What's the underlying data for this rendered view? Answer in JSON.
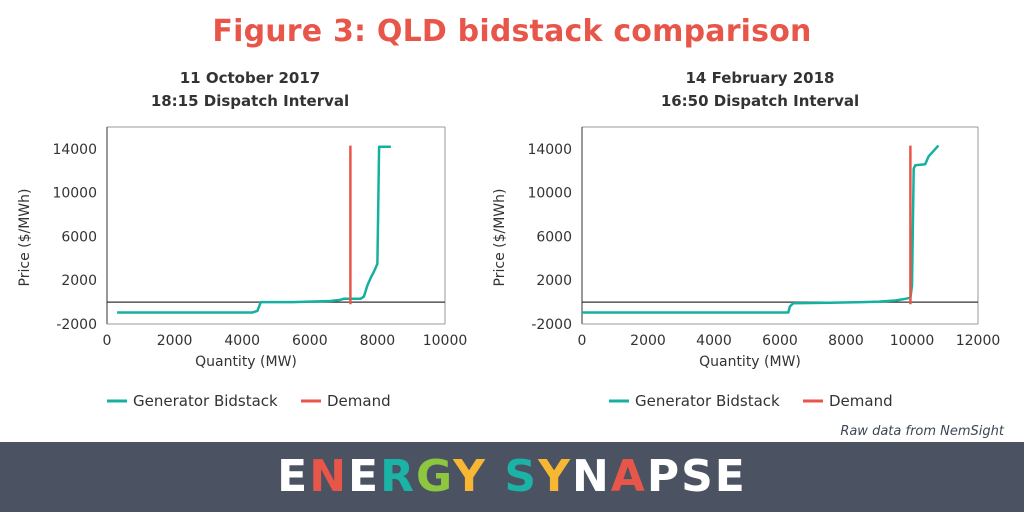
{
  "figure_title": "Figure 3: QLD bidstack comparison",
  "source_note": "Raw data from NemSight",
  "logo": {
    "text": "ENERGY SYNAPSE",
    "letter_colors": [
      "#ffffff",
      "#e8564a",
      "#ffffff",
      "#1ab3a6",
      "#8dc63f",
      "#f7b733",
      "#ffffff",
      "#1ab3a6",
      "#f7b733",
      "#ffffff",
      "#e8564a",
      "#ffffff",
      "#ffffff",
      "#ffffff"
    ]
  },
  "colors": {
    "bidstack": "#16b0a0",
    "demand": "#e8564a",
    "axis": "#333333",
    "title": "#e8564a",
    "footer": "#4b5262"
  },
  "chart_data": [
    {
      "type": "line",
      "title": "11 October 2017",
      "subtitle": "18:15 Dispatch Interval",
      "xlabel": "Quantity (MW)",
      "ylabel": "Price ($/MWh)",
      "xlim": [
        0,
        10000
      ],
      "ylim": [
        -2000,
        16000
      ],
      "xticks": [
        0,
        2000,
        4000,
        6000,
        8000,
        10000
      ],
      "yticks": [
        -2000,
        2000,
        6000,
        10000,
        14000
      ],
      "legend": [
        "Generator Bidstack",
        "Demand"
      ],
      "legend_position": "bottom",
      "series": [
        {
          "name": "Generator Bidstack",
          "x": [
            300,
            1500,
            3000,
            4300,
            4450,
            4550,
            5500,
            6000,
            6600,
            6900,
            7000,
            7500,
            7600,
            7700,
            7800,
            7900,
            8000,
            8050,
            8100,
            8400
          ],
          "y": [
            -950,
            -950,
            -950,
            -950,
            -800,
            0,
            0,
            50,
            100,
            200,
            300,
            300,
            500,
            1500,
            2200,
            2800,
            3500,
            14200,
            14200,
            14200
          ]
        },
        {
          "name": "Demand",
          "x": [
            7200,
            7200
          ],
          "y": [
            -200,
            14300
          ]
        }
      ]
    },
    {
      "type": "line",
      "title": "14 February 2018",
      "subtitle": "16:50 Dispatch Interval",
      "xlabel": "Quantity (MW)",
      "ylabel": "Price ($/MWh)",
      "xlim": [
        0,
        12000
      ],
      "ylim": [
        -2000,
        16000
      ],
      "xticks": [
        0,
        2000,
        4000,
        6000,
        8000,
        10000,
        12000
      ],
      "yticks": [
        -2000,
        2000,
        6000,
        10000,
        14000
      ],
      "legend": [
        "Generator Bidstack",
        "Demand"
      ],
      "legend_position": "bottom",
      "series": [
        {
          "name": "Generator Bidstack",
          "x": [
            0,
            2000,
            4000,
            6000,
            6250,
            6300,
            6400,
            7500,
            8500,
            9000,
            9500,
            9800,
            9950,
            10000,
            10050,
            10100,
            10400,
            10500,
            10800
          ],
          "y": [
            -950,
            -950,
            -950,
            -950,
            -950,
            -400,
            -100,
            -50,
            0,
            50,
            150,
            300,
            400,
            1500,
            12200,
            12500,
            12600,
            13300,
            14300
          ]
        },
        {
          "name": "Demand",
          "x": [
            9950,
            9950
          ],
          "y": [
            -200,
            14300
          ]
        }
      ]
    }
  ]
}
